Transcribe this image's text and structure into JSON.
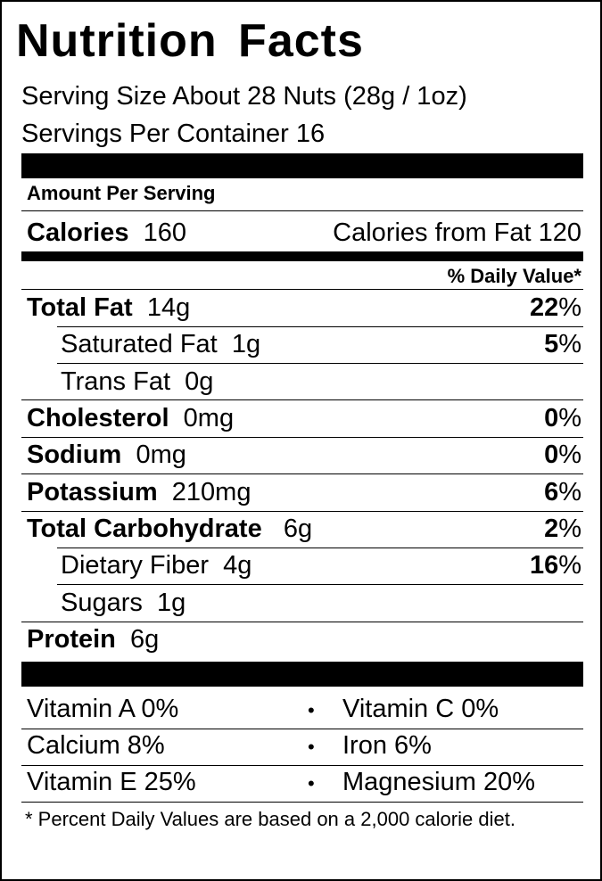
{
  "title": "Nutrition Facts",
  "serving_size": "Serving Size About 28 Nuts (28g / 1oz)",
  "servings_per_container": "Servings Per Container 16",
  "amount_per_serving": "Amount Per Serving",
  "calories": {
    "label": "Calories",
    "value": "160",
    "from_fat": "Calories from Fat 120"
  },
  "daily_value_header": "% Daily Value*",
  "nutrients": [
    {
      "label": "Total Fat",
      "amount": "14g",
      "dv_num": "22",
      "dv_sym": "%"
    },
    {
      "label": "Saturated Fat",
      "amount": "1g",
      "dv_num": "5",
      "dv_sym": "%"
    },
    {
      "label": "Trans Fat",
      "amount": "0g",
      "dv_num": "",
      "dv_sym": ""
    },
    {
      "label": "Cholesterol",
      "amount": "0mg",
      "dv_num": "0",
      "dv_sym": "%"
    },
    {
      "label": "Sodium",
      "amount": "0mg",
      "dv_num": "0",
      "dv_sym": "%"
    },
    {
      "label": "Potassium",
      "amount": "210mg",
      "dv_num": "6",
      "dv_sym": "%"
    },
    {
      "label": "Total Carbohydrate",
      "amount": "6g",
      "dv_num": "2",
      "dv_sym": "%"
    },
    {
      "label": "Dietary Fiber",
      "amount": "4g",
      "dv_num": "16",
      "dv_sym": "%"
    },
    {
      "label": "Sugars",
      "amount": "1g",
      "dv_num": "",
      "dv_sym": ""
    },
    {
      "label": "Protein",
      "amount": "6g",
      "dv_num": "",
      "dv_sym": ""
    }
  ],
  "vitamins": [
    {
      "left": "Vitamin A 0%",
      "bullet": "•",
      "right": "Vitamin C 0%"
    },
    {
      "left": "Calcium 8%",
      "bullet": "•",
      "right": "Iron 6%"
    },
    {
      "left": "Vitamin E 25%",
      "bullet": "•",
      "right": "Magnesium 20%"
    }
  ],
  "footnote": "* Percent Daily Values are based on a 2,000 calorie diet."
}
